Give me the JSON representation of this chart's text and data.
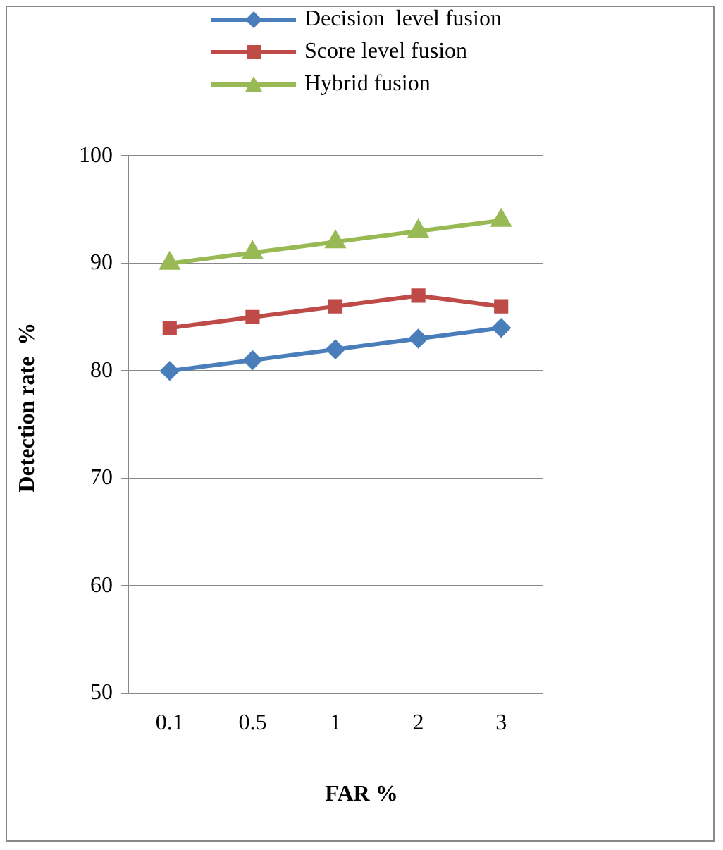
{
  "chart_data": {
    "type": "line",
    "xlabel": "FAR %",
    "ylabel": "Detection rate  %",
    "categories": [
      "0.1",
      "0.5",
      "1",
      "2",
      "3"
    ],
    "series": [
      {
        "name": "Decision  level fusion",
        "color": "#4a7ebb",
        "marker": "diamond",
        "values": [
          80,
          81,
          82,
          83,
          84
        ]
      },
      {
        "name": "Score level fusion",
        "color": "#be4b48",
        "marker": "square",
        "values": [
          84,
          85,
          86,
          87,
          86
        ]
      },
      {
        "name": "Hybrid fusion",
        "color": "#98b954",
        "marker": "triangle",
        "values": [
          90,
          91,
          92,
          93,
          94
        ]
      }
    ],
    "ylim": [
      50,
      100
    ],
    "yticks": [
      50,
      60,
      70,
      80,
      90,
      100
    ],
    "grid": "y",
    "legend": "top",
    "line_style": "solid"
  }
}
